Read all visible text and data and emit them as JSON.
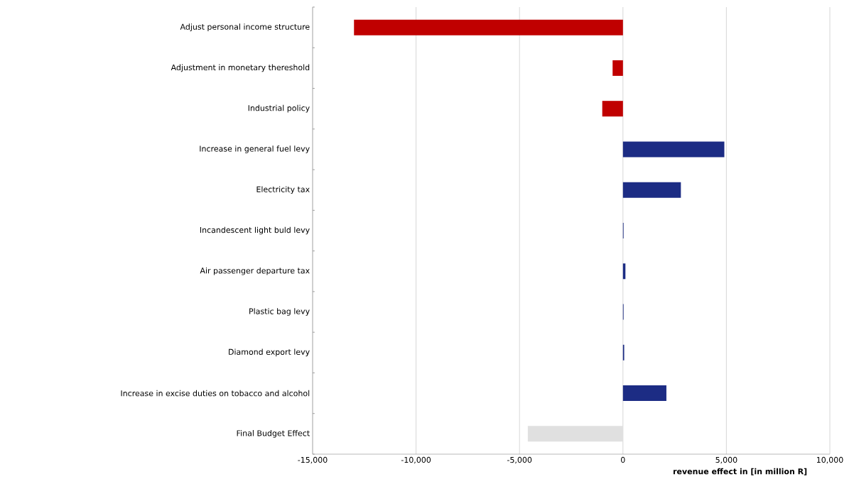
{
  "chart_data": {
    "type": "bar",
    "orientation": "horizontal",
    "categories": [
      "Adjust personal income structure",
      "Adjustment in monetary thereshold",
      "Industrial policy",
      "Increase in general fuel levy",
      "Electricity tax",
      "Incandescent light buld levy",
      "Air passenger departure tax",
      "Plastic bag levy",
      "Diamond export levy",
      "Increase in excise duties on tobacco and alcohol",
      "Final Budget Effect"
    ],
    "values": [
      -13000,
      -500,
      -1000,
      4900,
      2800,
      30,
      120,
      30,
      60,
      2100,
      -4600
    ],
    "colors": [
      "#c00000",
      "#c00000",
      "#c00000",
      "#1c2c84",
      "#1c2c84",
      "#1c2c84",
      "#1c2c84",
      "#1c2c84",
      "#1c2c84",
      "#1c2c84",
      "#e0e0e0"
    ],
    "xlabel": "revenue effect in [in million R]",
    "xlim": [
      -15000,
      10000
    ],
    "xticks": [
      {
        "value": -15000,
        "label": "-15,000"
      },
      {
        "value": -10000,
        "label": "-10,000"
      },
      {
        "value": -5000,
        "label": "-5,000"
      },
      0,
      {
        "value": 5000,
        "label": "5,000"
      },
      {
        "value": 10000,
        "label": "10,000"
      }
    ],
    "grid": "x"
  }
}
